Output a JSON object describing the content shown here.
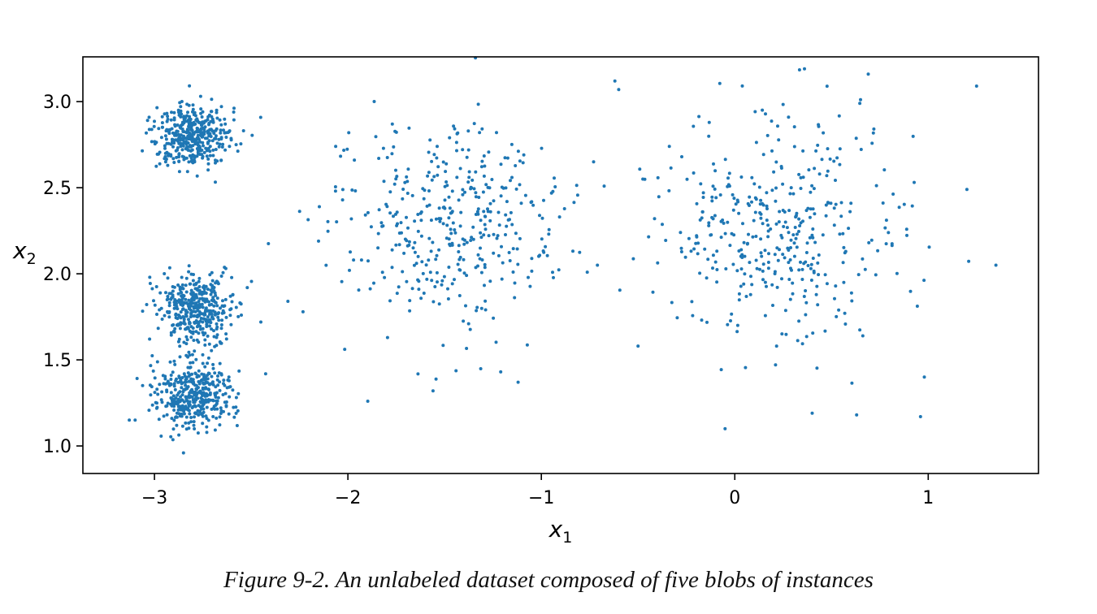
{
  "caption": "Figure 9-2. An unlabeled dataset composed of five blobs of instances",
  "chart_data": {
    "type": "scatter",
    "title": "",
    "xlabel": "x1",
    "ylabel": "x2",
    "xlabel_main": "x",
    "xlabel_sub": "1",
    "ylabel_main": "x",
    "ylabel_sub": "2",
    "xlim": [
      -3.37,
      1.57
    ],
    "ylim": [
      0.84,
      3.26
    ],
    "xticks": [
      -3,
      -2,
      -1,
      0,
      1
    ],
    "xtick_labels": [
      "−3",
      "−2",
      "−1",
      "0",
      "1"
    ],
    "yticks": [
      1.0,
      1.5,
      2.0,
      2.5,
      3.0
    ],
    "ytick_labels": [
      "1.0",
      "1.5",
      "2.0",
      "2.5",
      "3.0"
    ],
    "grid": false,
    "marker_color": "#1f77b4",
    "blobs": [
      {
        "center": [
          -2.8,
          2.8
        ],
        "std": 0.1,
        "count": 400
      },
      {
        "center": [
          -2.79,
          1.8
        ],
        "std": 0.1,
        "count": 400
      },
      {
        "center": [
          -2.8,
          1.3
        ],
        "std": 0.1,
        "count": 400
      },
      {
        "center": [
          -1.47,
          2.28
        ],
        "std": 0.3,
        "count": 400
      },
      {
        "center": [
          0.2,
          2.25
        ],
        "std": 0.32,
        "count": 400
      }
    ],
    "extra_points": [
      [
        -3.13,
        1.15
      ],
      [
        -3.1,
        1.15
      ],
      [
        -2.85,
        0.96
      ],
      [
        -2.52,
        1.92
      ],
      [
        -2.45,
        1.72
      ],
      [
        -2.31,
        1.84
      ],
      [
        -1.56,
        1.32
      ],
      [
        -1.21,
        1.43
      ],
      [
        -1.12,
        1.37
      ],
      [
        -0.62,
        3.12
      ],
      [
        -0.6,
        3.07
      ],
      [
        0.36,
        3.19
      ],
      [
        0.69,
        3.16
      ],
      [
        1.25,
        3.09
      ],
      [
        1.35,
        2.05
      ],
      [
        1.2,
        2.49
      ],
      [
        0.98,
        1.4
      ],
      [
        0.96,
        1.17
      ],
      [
        0.63,
        1.18
      ],
      [
        0.4,
        1.19
      ],
      [
        -0.05,
        1.1
      ],
      [
        -0.73,
        2.65
      ],
      [
        -0.71,
        2.05
      ],
      [
        -0.5,
        1.58
      ]
    ]
  }
}
